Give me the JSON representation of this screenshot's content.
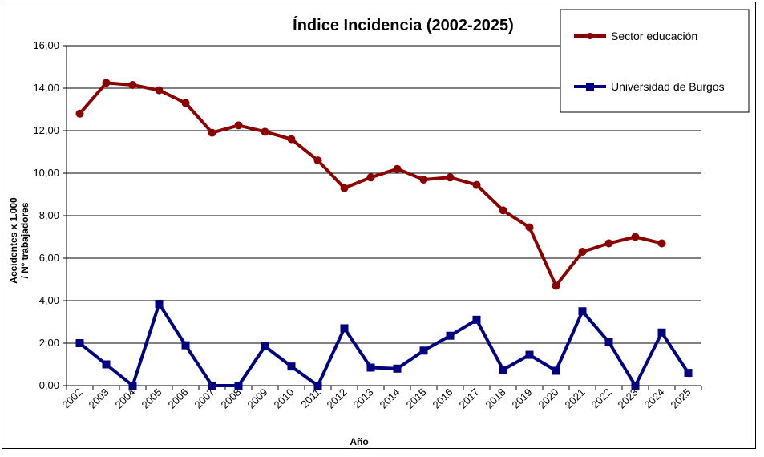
{
  "chart_data": {
    "type": "line",
    "title": "Índice Incidencia (2002-2025)",
    "xlabel": "Año",
    "ylabel_lines": [
      "Accidentes x 1.000",
      "/ Nº trabajadores"
    ],
    "categories": [
      "2002",
      "2003",
      "2004",
      "2005",
      "2006",
      "2007",
      "2008",
      "2009",
      "2010",
      "2011",
      "2012",
      "2013",
      "2014",
      "2015",
      "2016",
      "2017",
      "2018",
      "2019",
      "2020",
      "2021",
      "2022",
      "2023",
      "2024",
      "2025"
    ],
    "ylim": [
      0,
      16
    ],
    "yticks": [
      "0,00",
      "2,00",
      "4,00",
      "6,00",
      "8,00",
      "10,00",
      "12,00",
      "14,00",
      "16,00"
    ],
    "grid": true,
    "legend_position": "top-right",
    "series": [
      {
        "name": "Sector educación",
        "color": "#8B0000",
        "marker": "circle",
        "values": [
          12.8,
          14.25,
          14.15,
          13.9,
          13.3,
          11.9,
          12.25,
          11.95,
          11.6,
          10.6,
          9.3,
          9.8,
          10.2,
          9.7,
          9.8,
          9.45,
          8.25,
          7.45,
          4.7,
          6.3,
          6.7,
          7.0,
          6.7,
          null
        ]
      },
      {
        "name": "Universidad de Burgos",
        "color": "#000080",
        "marker": "square",
        "values": [
          2.0,
          1.0,
          0.0,
          3.85,
          1.9,
          0.0,
          0.0,
          1.85,
          0.9,
          0.0,
          2.7,
          0.85,
          0.8,
          1.65,
          2.35,
          3.1,
          0.75,
          1.45,
          0.7,
          3.5,
          2.05,
          0.0,
          2.5,
          0.6
        ]
      }
    ]
  }
}
